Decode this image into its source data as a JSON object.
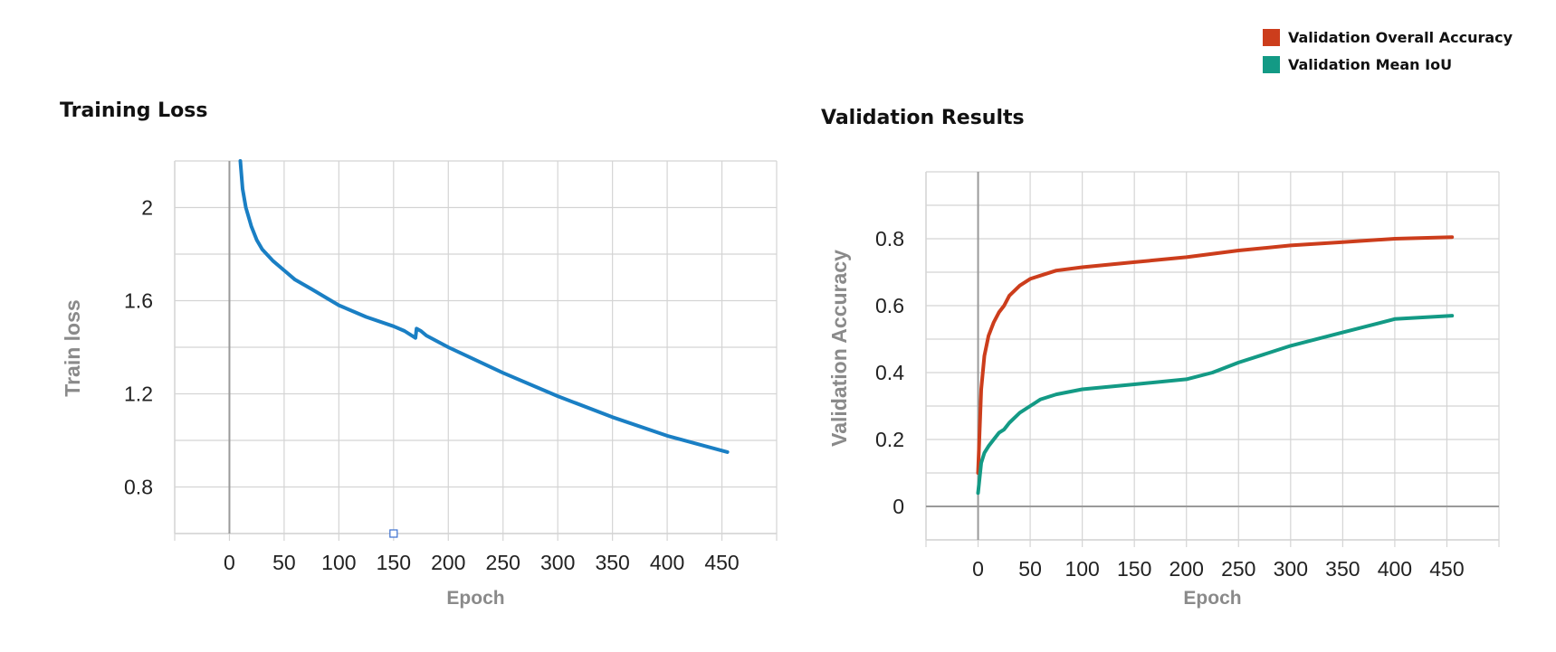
{
  "legend": {
    "items": [
      {
        "label": "Validation Overall Accuracy",
        "color": "#cc3d1c"
      },
      {
        "label": "Validation Mean IoU",
        "color": "#139a85"
      }
    ]
  },
  "colors": {
    "grid": "#d4d4d4",
    "zero_axis": "#9a9a9a",
    "tick_text": "#222222",
    "axis_label": "#8a8a8a",
    "loss_line": "#1a7fc4"
  },
  "chart_data": [
    {
      "type": "line",
      "title": "Training Loss",
      "xlabel": "Epoch",
      "ylabel": "Train loss",
      "xlim": [
        -50,
        500
      ],
      "ylim": [
        0.6,
        2.2
      ],
      "xticks": [
        0,
        50,
        100,
        150,
        200,
        250,
        300,
        350,
        400,
        450
      ],
      "yticks": [
        0.8,
        1.2,
        1.6,
        2.0
      ],
      "ytick_labels": [
        "0.8",
        "1.2",
        "1.6",
        "2"
      ],
      "grid": true,
      "series": [
        {
          "color": "#1a7fc4",
          "x": [
            10,
            12,
            15,
            20,
            25,
            30,
            40,
            50,
            60,
            75,
            100,
            125,
            150,
            160,
            170,
            171,
            175,
            180,
            200,
            250,
            300,
            350,
            400,
            455
          ],
          "y": [
            2.2,
            2.08,
            2.0,
            1.92,
            1.86,
            1.82,
            1.77,
            1.73,
            1.69,
            1.65,
            1.58,
            1.53,
            1.49,
            1.47,
            1.44,
            1.48,
            1.47,
            1.45,
            1.4,
            1.29,
            1.19,
            1.1,
            1.02,
            0.95
          ]
        }
      ]
    },
    {
      "type": "line",
      "title": "Validation Results",
      "xlabel": "Epoch",
      "ylabel": "Validation Accuracy",
      "xlim": [
        -50,
        500
      ],
      "ylim": [
        -0.1,
        1.0
      ],
      "xticks": [
        0,
        50,
        100,
        150,
        200,
        250,
        300,
        350,
        400,
        450
      ],
      "yticks": [
        0,
        0.2,
        0.4,
        0.6,
        0.8
      ],
      "ytick_labels": [
        "0",
        "0.2",
        "0.4",
        "0.6",
        "0.8"
      ],
      "grid": true,
      "series": [
        {
          "name": "Validation Overall Accuracy",
          "color": "#cc3d1c",
          "x": [
            0,
            3,
            6,
            10,
            15,
            20,
            25,
            30,
            40,
            50,
            60,
            75,
            100,
            150,
            200,
            250,
            300,
            350,
            400,
            455
          ],
          "y": [
            0.1,
            0.35,
            0.45,
            0.51,
            0.55,
            0.58,
            0.6,
            0.63,
            0.66,
            0.68,
            0.69,
            0.705,
            0.715,
            0.73,
            0.745,
            0.765,
            0.78,
            0.79,
            0.8,
            0.805
          ]
        },
        {
          "name": "Validation Mean IoU",
          "color": "#139a85",
          "x": [
            0,
            3,
            6,
            10,
            15,
            20,
            25,
            30,
            40,
            50,
            60,
            75,
            100,
            150,
            200,
            225,
            250,
            300,
            350,
            400,
            455
          ],
          "y": [
            0.04,
            0.13,
            0.16,
            0.18,
            0.2,
            0.22,
            0.23,
            0.25,
            0.28,
            0.3,
            0.32,
            0.335,
            0.35,
            0.365,
            0.38,
            0.4,
            0.43,
            0.48,
            0.52,
            0.56,
            0.57
          ]
        }
      ]
    }
  ]
}
